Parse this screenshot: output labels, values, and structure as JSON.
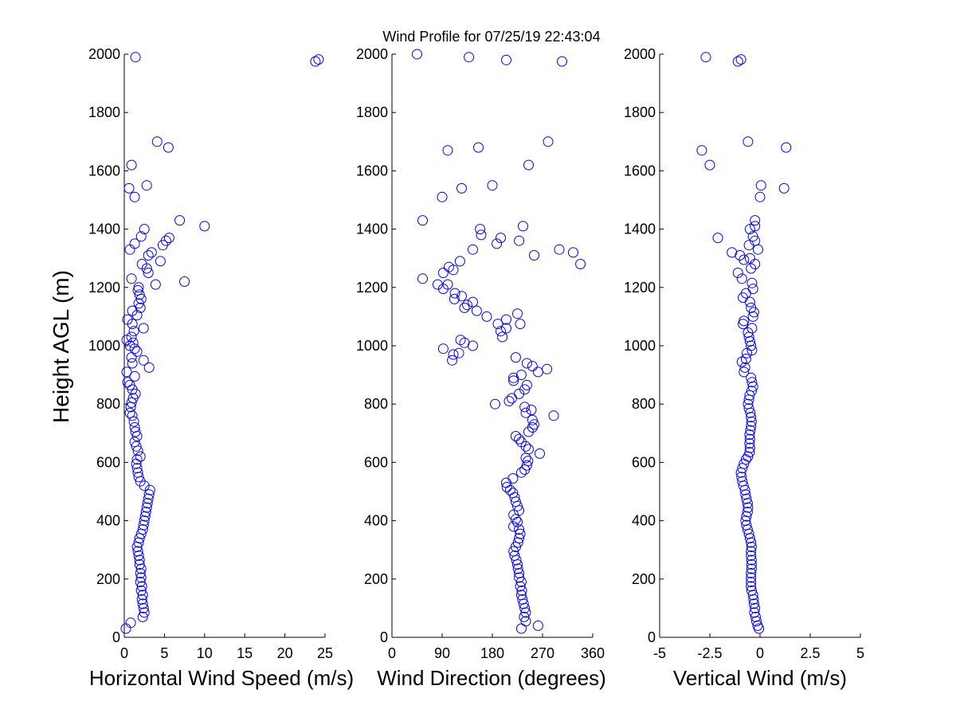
{
  "title": "Wind Profile for  07/25/19 22:43:04",
  "marker_color": "#0000ff",
  "ylabel": "Height AGL (m)",
  "yticks": [
    "0",
    "200",
    "400",
    "600",
    "800",
    "1000",
    "1200",
    "1400",
    "1600",
    "1800",
    "2000"
  ],
  "chart_data": [
    {
      "type": "scatter",
      "xlabel": "Horizontal Wind Speed (m/s)",
      "xlim": [
        0,
        25
      ],
      "ylim": [
        0,
        2000
      ],
      "xtick_values": [
        0,
        5,
        10,
        15,
        20,
        25
      ],
      "xticks": [
        "0",
        "5",
        "10",
        "15",
        "20",
        "25"
      ],
      "points": [
        [
          0.2,
          30
        ],
        [
          0.8,
          50
        ],
        [
          2.3,
          70
        ],
        [
          2.5,
          85
        ],
        [
          2.4,
          100
        ],
        [
          2.3,
          115
        ],
        [
          2.2,
          130
        ],
        [
          2.3,
          145
        ],
        [
          2.1,
          160
        ],
        [
          2.2,
          175
        ],
        [
          2.0,
          190
        ],
        [
          2.1,
          205
        ],
        [
          2.0,
          220
        ],
        [
          2.1,
          235
        ],
        [
          1.9,
          250
        ],
        [
          1.9,
          265
        ],
        [
          1.8,
          280
        ],
        [
          1.7,
          295
        ],
        [
          1.6,
          310
        ],
        [
          1.8,
          325
        ],
        [
          1.9,
          340
        ],
        [
          2.1,
          355
        ],
        [
          2.3,
          370
        ],
        [
          2.4,
          385
        ],
        [
          2.5,
          400
        ],
        [
          2.6,
          415
        ],
        [
          2.7,
          430
        ],
        [
          2.8,
          445
        ],
        [
          2.9,
          460
        ],
        [
          3.0,
          475
        ],
        [
          3.1,
          490
        ],
        [
          3.2,
          505
        ],
        [
          2.5,
          520
        ],
        [
          2.0,
          535
        ],
        [
          1.8,
          550
        ],
        [
          1.7,
          565
        ],
        [
          1.6,
          580
        ],
        [
          1.5,
          595
        ],
        [
          1.6,
          610
        ],
        [
          2.0,
          620
        ],
        [
          1.7,
          640
        ],
        [
          1.5,
          655
        ],
        [
          1.3,
          670
        ],
        [
          1.6,
          690
        ],
        [
          1.4,
          705
        ],
        [
          1.3,
          720
        ],
        [
          1.2,
          740
        ],
        [
          1.0,
          760
        ],
        [
          0.7,
          770
        ],
        [
          0.8,
          790
        ],
        [
          0.9,
          805
        ],
        [
          1.1,
          820
        ],
        [
          1.4,
          835
        ],
        [
          1.0,
          850
        ],
        [
          0.7,
          865
        ],
        [
          0.4,
          875
        ],
        [
          1.3,
          895
        ],
        [
          0.3,
          910
        ],
        [
          3.1,
          925
        ],
        [
          1.0,
          940
        ],
        [
          2.4,
          950
        ],
        [
          0.9,
          960
        ],
        [
          1.6,
          980
        ],
        [
          1.3,
          990
        ],
        [
          0.7,
          1000
        ],
        [
          1.1,
          1010
        ],
        [
          0.3,
          1020
        ],
        [
          0.9,
          1030
        ],
        [
          1.2,
          1050
        ],
        [
          2.4,
          1060
        ],
        [
          1.0,
          1075
        ],
        [
          0.4,
          1090
        ],
        [
          1.6,
          1105
        ],
        [
          1.0,
          1120
        ],
        [
          2.0,
          1130
        ],
        [
          1.8,
          1145
        ],
        [
          2.1,
          1160
        ],
        [
          1.9,
          1175
        ],
        [
          1.7,
          1190
        ],
        [
          1.8,
          1200
        ],
        [
          3.9,
          1210
        ],
        [
          7.5,
          1220
        ],
        [
          0.9,
          1230
        ],
        [
          3.0,
          1250
        ],
        [
          2.8,
          1265
        ],
        [
          2.2,
          1280
        ],
        [
          4.5,
          1290
        ],
        [
          3.0,
          1310
        ],
        [
          3.4,
          1320
        ],
        [
          0.7,
          1330
        ],
        [
          4.8,
          1345
        ],
        [
          1.3,
          1350
        ],
        [
          5.2,
          1360
        ],
        [
          5.6,
          1370
        ],
        [
          2.1,
          1375
        ],
        [
          2.5,
          1400
        ],
        [
          10.0,
          1410
        ],
        [
          6.9,
          1430
        ],
        [
          1.3,
          1510
        ],
        [
          0.6,
          1540
        ],
        [
          2.8,
          1550
        ],
        [
          0.9,
          1620
        ],
        [
          5.5,
          1680
        ],
        [
          4.1,
          1700
        ],
        [
          23.8,
          1975
        ],
        [
          24.2,
          1982
        ],
        [
          1.4,
          1990
        ]
      ]
    },
    {
      "type": "scatter",
      "xlabel": "Wind Direction (degrees)",
      "xlim": [
        0,
        360
      ],
      "ylim": [
        0,
        2000
      ],
      "xtick_values": [
        0,
        90,
        180,
        270,
        360
      ],
      "xticks": [
        "0",
        "90",
        "180",
        "270",
        "360"
      ],
      "points": [
        [
          232,
          30
        ],
        [
          262,
          40
        ],
        [
          240,
          55
        ],
        [
          237,
          70
        ],
        [
          240,
          85
        ],
        [
          238,
          100
        ],
        [
          236,
          115
        ],
        [
          234,
          130
        ],
        [
          232,
          145
        ],
        [
          233,
          160
        ],
        [
          230,
          175
        ],
        [
          232,
          190
        ],
        [
          228,
          205
        ],
        [
          228,
          220
        ],
        [
          226,
          235
        ],
        [
          225,
          250
        ],
        [
          223,
          265
        ],
        [
          220,
          280
        ],
        [
          218,
          295
        ],
        [
          222,
          310
        ],
        [
          226,
          325
        ],
        [
          228,
          340
        ],
        [
          230,
          355
        ],
        [
          228,
          370
        ],
        [
          218,
          380
        ],
        [
          225,
          395
        ],
        [
          222,
          405
        ],
        [
          218,
          420
        ],
        [
          228,
          435
        ],
        [
          225,
          450
        ],
        [
          222,
          465
        ],
        [
          220,
          480
        ],
        [
          217,
          495
        ],
        [
          212,
          505
        ],
        [
          206,
          515
        ],
        [
          205,
          530
        ],
        [
          217,
          545
        ],
        [
          232,
          565
        ],
        [
          238,
          575
        ],
        [
          242,
          590
        ],
        [
          244,
          605
        ],
        [
          240,
          615
        ],
        [
          265,
          630
        ],
        [
          245,
          645
        ],
        [
          240,
          655
        ],
        [
          232,
          670
        ],
        [
          228,
          680
        ],
        [
          222,
          690
        ],
        [
          245,
          705
        ],
        [
          252,
          720
        ],
        [
          255,
          730
        ],
        [
          252,
          745
        ],
        [
          290,
          760
        ],
        [
          240,
          770
        ],
        [
          250,
          780
        ],
        [
          238,
          790
        ],
        [
          185,
          800
        ],
        [
          210,
          810
        ],
        [
          215,
          820
        ],
        [
          228,
          835
        ],
        [
          238,
          850
        ],
        [
          242,
          865
        ],
        [
          218,
          880
        ],
        [
          218,
          890
        ],
        [
          232,
          900
        ],
        [
          262,
          910
        ],
        [
          278,
          920
        ],
        [
          252,
          930
        ],
        [
          242,
          940
        ],
        [
          222,
          960
        ],
        [
          108,
          950
        ],
        [
          110,
          970
        ],
        [
          120,
          975
        ],
        [
          92,
          990
        ],
        [
          145,
          1000
        ],
        [
          130,
          1010
        ],
        [
          123,
          1020
        ],
        [
          198,
          1030
        ],
        [
          195,
          1050
        ],
        [
          205,
          1060
        ],
        [
          190,
          1075
        ],
        [
          230,
          1075
        ],
        [
          205,
          1090
        ],
        [
          170,
          1100
        ],
        [
          225,
          1110
        ],
        [
          152,
          1120
        ],
        [
          130,
          1130
        ],
        [
          135,
          1140
        ],
        [
          145,
          1150
        ],
        [
          112,
          1160
        ],
        [
          125,
          1170
        ],
        [
          113,
          1180
        ],
        [
          92,
          1195
        ],
        [
          82,
          1210
        ],
        [
          100,
          1210
        ],
        [
          55,
          1230
        ],
        [
          92,
          1250
        ],
        [
          110,
          1260
        ],
        [
          102,
          1270
        ],
        [
          122,
          1290
        ],
        [
          255,
          1310
        ],
        [
          325,
          1320
        ],
        [
          300,
          1330
        ],
        [
          338,
          1280
        ],
        [
          145,
          1330
        ],
        [
          188,
          1350
        ],
        [
          228,
          1360
        ],
        [
          195,
          1370
        ],
        [
          160,
          1380
        ],
        [
          158,
          1400
        ],
        [
          235,
          1410
        ],
        [
          55,
          1430
        ],
        [
          90,
          1510
        ],
        [
          125,
          1540
        ],
        [
          180,
          1550
        ],
        [
          245,
          1620
        ],
        [
          100,
          1670
        ],
        [
          155,
          1680
        ],
        [
          280,
          1700
        ],
        [
          45,
          2000
        ],
        [
          138,
          1990
        ],
        [
          205,
          1980
        ],
        [
          305,
          1975
        ]
      ]
    },
    {
      "type": "scatter",
      "xlabel": "Vertical Wind (m/s)",
      "xlim": [
        -5,
        5
      ],
      "ylim": [
        0,
        2000
      ],
      "xtick_values": [
        -5,
        -2.5,
        0,
        2.5,
        5
      ],
      "xticks": [
        "-5",
        "-2.5",
        "0",
        "2.5",
        "5"
      ],
      "points": [
        [
          -0.05,
          30
        ],
        [
          -0.12,
          40
        ],
        [
          -0.18,
          55
        ],
        [
          -0.22,
          70
        ],
        [
          -0.28,
          85
        ],
        [
          -0.25,
          100
        ],
        [
          -0.3,
          115
        ],
        [
          -0.32,
          130
        ],
        [
          -0.35,
          145
        ],
        [
          -0.42,
          160
        ],
        [
          -0.45,
          175
        ],
        [
          -0.45,
          190
        ],
        [
          -0.45,
          205
        ],
        [
          -0.45,
          220
        ],
        [
          -0.42,
          235
        ],
        [
          -0.42,
          250
        ],
        [
          -0.42,
          265
        ],
        [
          -0.45,
          280
        ],
        [
          -0.45,
          295
        ],
        [
          -0.42,
          310
        ],
        [
          -0.45,
          325
        ],
        [
          -0.5,
          340
        ],
        [
          -0.55,
          355
        ],
        [
          -0.62,
          370
        ],
        [
          -0.68,
          385
        ],
        [
          -0.72,
          400
        ],
        [
          -0.68,
          415
        ],
        [
          -0.62,
          430
        ],
        [
          -0.6,
          445
        ],
        [
          -0.62,
          460
        ],
        [
          -0.68,
          475
        ],
        [
          -0.72,
          490
        ],
        [
          -0.75,
          505
        ],
        [
          -0.82,
          520
        ],
        [
          -0.88,
          535
        ],
        [
          -0.92,
          550
        ],
        [
          -0.95,
          565
        ],
        [
          -0.88,
          580
        ],
        [
          -0.8,
          595
        ],
        [
          -0.7,
          610
        ],
        [
          -0.6,
          620
        ],
        [
          -0.52,
          635
        ],
        [
          -0.5,
          650
        ],
        [
          -0.52,
          665
        ],
        [
          -0.5,
          680
        ],
        [
          -0.52,
          695
        ],
        [
          -0.48,
          710
        ],
        [
          -0.45,
          725
        ],
        [
          -0.42,
          740
        ],
        [
          -0.45,
          755
        ],
        [
          -0.48,
          770
        ],
        [
          -0.55,
          785
        ],
        [
          -0.6,
          800
        ],
        [
          -0.55,
          815
        ],
        [
          -0.52,
          830
        ],
        [
          -0.42,
          845
        ],
        [
          -0.35,
          860
        ],
        [
          -0.4,
          875
        ],
        [
          -0.45,
          890
        ],
        [
          -0.8,
          910
        ],
        [
          -0.75,
          925
        ],
        [
          -0.9,
          945
        ],
        [
          -0.7,
          955
        ],
        [
          -0.65,
          975
        ],
        [
          -0.4,
          985
        ],
        [
          -0.45,
          1000
        ],
        [
          -0.5,
          1015
        ],
        [
          -0.55,
          1030
        ],
        [
          -0.6,
          1045
        ],
        [
          -0.4,
          1060
        ],
        [
          -0.85,
          1075
        ],
        [
          -0.8,
          1085
        ],
        [
          -0.35,
          1100
        ],
        [
          -0.3,
          1115
        ],
        [
          -0.45,
          1130
        ],
        [
          -0.5,
          1150
        ],
        [
          -0.85,
          1165
        ],
        [
          -0.7,
          1180
        ],
        [
          -0.35,
          1195
        ],
        [
          -0.4,
          1215
        ],
        [
          -0.9,
          1230
        ],
        [
          -1.1,
          1250
        ],
        [
          -0.45,
          1265
        ],
        [
          -0.25,
          1280
        ],
        [
          -0.8,
          1295
        ],
        [
          -0.5,
          1300
        ],
        [
          -1.4,
          1320
        ],
        [
          -0.1,
          1330
        ],
        [
          -0.55,
          1345
        ],
        [
          -0.25,
          1360
        ],
        [
          -1.0,
          1310
        ],
        [
          -0.35,
          1375
        ],
        [
          -2.1,
          1370
        ],
        [
          -0.5,
          1400
        ],
        [
          -0.25,
          1410
        ],
        [
          -0.25,
          1430
        ],
        [
          0.0,
          1510
        ],
        [
          1.2,
          1540
        ],
        [
          0.05,
          1550
        ],
        [
          -2.5,
          1620
        ],
        [
          -2.9,
          1670
        ],
        [
          1.3,
          1680
        ],
        [
          -0.6,
          1700
        ],
        [
          -1.1,
          1975
        ],
        [
          -0.95,
          1982
        ],
        [
          -2.7,
          1990
        ]
      ]
    }
  ]
}
